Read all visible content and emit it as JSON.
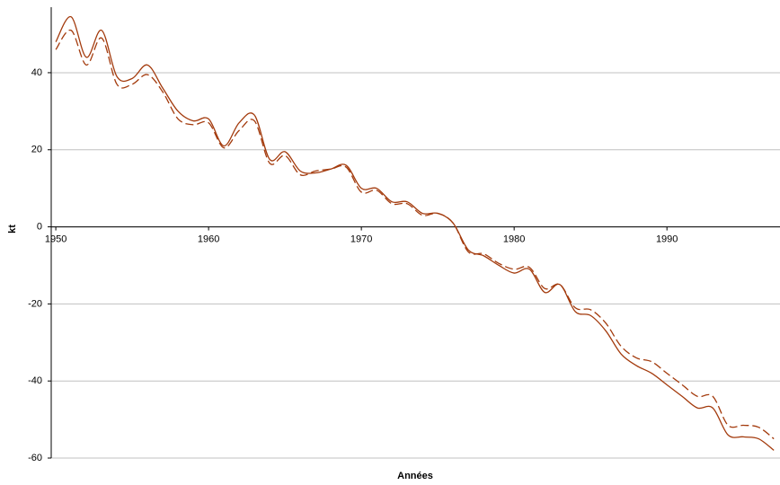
{
  "chart_data": {
    "type": "line",
    "x": [
      1950,
      1951,
      1952,
      1953,
      1954,
      1955,
      1956,
      1957,
      1958,
      1959,
      1960,
      1961,
      1962,
      1963,
      1964,
      1965,
      1966,
      1967,
      1968,
      1969,
      1970,
      1971,
      1972,
      1973,
      1974,
      1975,
      1976,
      1977,
      1978,
      1979,
      1980,
      1981,
      1982,
      1983,
      1984,
      1985,
      1986,
      1987,
      1988,
      1989,
      1990,
      1991,
      1992,
      1993,
      1994,
      1995,
      1996,
      1997
    ],
    "series": [
      {
        "color": "#a33a0c",
        "dash": false,
        "values": [
          48,
          54.5,
          44,
          51,
          39,
          38.5,
          42,
          36,
          30,
          27.5,
          28,
          21,
          27,
          29,
          17.5,
          19.5,
          14.5,
          14,
          15,
          16,
          10,
          10,
          6.5,
          6.5,
          3.5,
          3.5,
          1,
          -6,
          -7.5,
          -10,
          -12,
          -11,
          -17,
          -15,
          -22,
          -23,
          -27,
          -33,
          -36,
          -38,
          -41,
          -44,
          -47,
          -47,
          -54,
          -54.5,
          -55,
          -58
        ]
      },
      {
        "color": "#a33a0c",
        "dash": true,
        "values": [
          46,
          51,
          42,
          49,
          37,
          37,
          39.5,
          35,
          28,
          26.5,
          27,
          20.5,
          25,
          27.5,
          16.5,
          18.5,
          13.5,
          14.5,
          15,
          15.5,
          9,
          9.5,
          6,
          6,
          3,
          3.5,
          1,
          -6.5,
          -7,
          -9.5,
          -11,
          -10.5,
          -16,
          -15,
          -21,
          -21.5,
          -25,
          -31,
          -34,
          -35,
          -38,
          -41,
          -44,
          -44,
          -51.5,
          -51.5,
          -52,
          -55
        ]
      }
    ],
    "xlabel": "Années",
    "ylabel": "kt",
    "xlim": [
      1949.7,
      1997.4
    ],
    "xticks": [
      1950,
      1960,
      1970,
      1980,
      1990
    ],
    "ylim": [
      -60,
      57
    ],
    "yticks": [
      -60,
      -40,
      -20,
      0,
      20,
      40
    ],
    "grid": true
  }
}
